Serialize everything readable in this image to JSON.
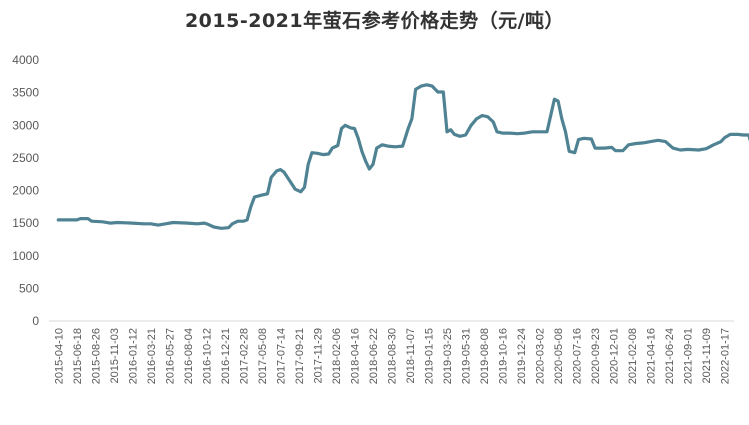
{
  "chart_data": {
    "type": "line",
    "title": "2015-2021年萤石参考价格走势（元/吨）",
    "xlabel": "",
    "ylabel": "",
    "ylim": [
      0,
      4000
    ],
    "yticks": [
      "0",
      "500",
      "1000",
      "1500",
      "2000",
      "2500",
      "3000",
      "3500",
      "4000"
    ],
    "grid": false,
    "legend": "none",
    "line_color": "#4f8393",
    "categories": [
      "2015-04-10",
      "2015-06-18",
      "2015-08-26",
      "2015-11-03",
      "2016-01-12",
      "2016-03-21",
      "2016-05-27",
      "2016-08-04",
      "2016-10-12",
      "2016-12-21",
      "2017-02-28",
      "2017-05-08",
      "2017-07-14",
      "2017-09-21",
      "2017-11-29",
      "2018-02-06",
      "2018-04-16",
      "2018-06-22",
      "2018-08-30",
      "2018-11-07",
      "2019-01-15",
      "2019-03-25",
      "2019-05-31",
      "2019-08-08",
      "2019-10-16",
      "2019-12-24",
      "2020-03-02",
      "2020-05-08",
      "2020-07-16",
      "2020-09-23",
      "2020-12-01",
      "2021-02-08",
      "2021-04-16",
      "2021-06-24",
      "2021-09-01",
      "2021-11-09",
      "2022-01-17"
    ],
    "series": [
      {
        "name": "",
        "points": [
          [
            0,
            1550
          ],
          [
            1.0,
            1550
          ],
          [
            1.2,
            1570
          ],
          [
            1.6,
            1570
          ],
          [
            1.8,
            1530
          ],
          [
            2.4,
            1520
          ],
          [
            2.8,
            1500
          ],
          [
            3.2,
            1510
          ],
          [
            4.0,
            1500
          ],
          [
            4.6,
            1490
          ],
          [
            5.0,
            1490
          ],
          [
            5.4,
            1470
          ],
          [
            5.8,
            1490
          ],
          [
            6.2,
            1510
          ],
          [
            7.0,
            1500
          ],
          [
            7.5,
            1490
          ],
          [
            7.9,
            1500
          ],
          [
            8.1,
            1480
          ],
          [
            8.4,
            1440
          ],
          [
            8.8,
            1420
          ],
          [
            9.2,
            1430
          ],
          [
            9.4,
            1490
          ],
          [
            9.7,
            1530
          ],
          [
            10.0,
            1530
          ],
          [
            10.2,
            1550
          ],
          [
            10.4,
            1750
          ],
          [
            10.6,
            1900
          ],
          [
            11.0,
            1930
          ],
          [
            11.3,
            1950
          ],
          [
            11.5,
            2200
          ],
          [
            11.8,
            2300
          ],
          [
            12.0,
            2320
          ],
          [
            12.2,
            2280
          ],
          [
            12.5,
            2150
          ],
          [
            12.8,
            2020
          ],
          [
            13.1,
            1980
          ],
          [
            13.3,
            2050
          ],
          [
            13.5,
            2400
          ],
          [
            13.7,
            2580
          ],
          [
            14.0,
            2570
          ],
          [
            14.3,
            2550
          ],
          [
            14.6,
            2560
          ],
          [
            14.8,
            2650
          ],
          [
            15.1,
            2690
          ],
          [
            15.3,
            2950
          ],
          [
            15.5,
            3000
          ],
          [
            15.8,
            2960
          ],
          [
            16.0,
            2950
          ],
          [
            16.2,
            2800
          ],
          [
            16.4,
            2600
          ],
          [
            16.6,
            2450
          ],
          [
            16.8,
            2330
          ],
          [
            17.0,
            2400
          ],
          [
            17.2,
            2650
          ],
          [
            17.5,
            2700
          ],
          [
            17.8,
            2680
          ],
          [
            18.2,
            2670
          ],
          [
            18.6,
            2680
          ],
          [
            18.9,
            2950
          ],
          [
            19.1,
            3100
          ],
          [
            19.3,
            3550
          ],
          [
            19.6,
            3600
          ],
          [
            19.9,
            3620
          ],
          [
            20.2,
            3600
          ],
          [
            20.5,
            3510
          ],
          [
            20.8,
            3510
          ],
          [
            20.9,
            3200
          ],
          [
            21.0,
            2900
          ],
          [
            21.2,
            2930
          ],
          [
            21.4,
            2860
          ],
          [
            21.7,
            2830
          ],
          [
            22.0,
            2850
          ],
          [
            22.3,
            3000
          ],
          [
            22.6,
            3100
          ],
          [
            22.9,
            3150
          ],
          [
            23.2,
            3130
          ],
          [
            23.5,
            3050
          ],
          [
            23.7,
            2900
          ],
          [
            24.0,
            2880
          ],
          [
            24.4,
            2880
          ],
          [
            24.8,
            2870
          ],
          [
            25.2,
            2880
          ],
          [
            25.6,
            2900
          ],
          [
            26.0,
            2900
          ],
          [
            26.4,
            2900
          ],
          [
            26.6,
            3150
          ],
          [
            26.8,
            3400
          ],
          [
            27.0,
            3370
          ],
          [
            27.2,
            3100
          ],
          [
            27.4,
            2900
          ],
          [
            27.6,
            2600
          ],
          [
            27.9,
            2580
          ],
          [
            28.1,
            2780
          ],
          [
            28.4,
            2800
          ],
          [
            28.8,
            2790
          ],
          [
            29.0,
            2650
          ],
          [
            29.5,
            2650
          ],
          [
            29.9,
            2660
          ],
          [
            30.1,
            2610
          ],
          [
            30.5,
            2610
          ],
          [
            30.8,
            2700
          ],
          [
            31.2,
            2720
          ],
          [
            31.6,
            2730
          ],
          [
            32.0,
            2750
          ],
          [
            32.4,
            2770
          ],
          [
            32.8,
            2750
          ],
          [
            33.0,
            2700
          ],
          [
            33.2,
            2650
          ],
          [
            33.6,
            2620
          ],
          [
            34.0,
            2630
          ],
          [
            34.6,
            2620
          ],
          [
            35.0,
            2640
          ],
          [
            35.4,
            2700
          ],
          [
            35.8,
            2750
          ],
          [
            36.0,
            2810
          ],
          [
            36.3,
            2860
          ],
          [
            36.7,
            2860
          ],
          [
            37.0,
            2850
          ],
          [
            37.3,
            2850
          ],
          [
            37.5,
            2650
          ],
          [
            37.7,
            2620
          ]
        ]
      }
    ]
  }
}
